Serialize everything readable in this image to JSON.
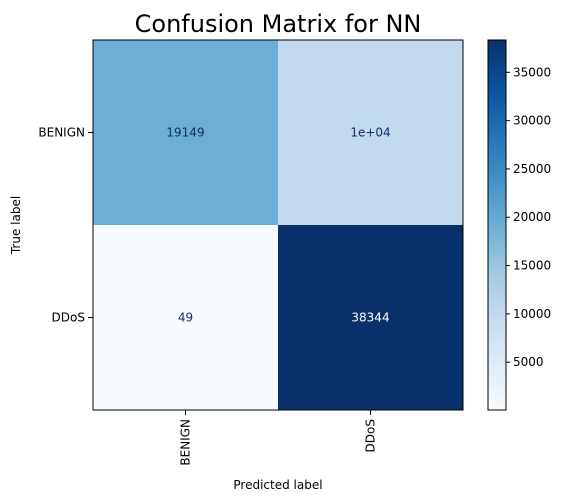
{
  "chart_data": {
    "type": "heatmap",
    "title": "Confusion Matrix for NN",
    "xlabel": "Predicted label",
    "ylabel": "True label",
    "x_categories": [
      "BENIGN",
      "DDoS"
    ],
    "y_categories": [
      "BENIGN",
      "DDoS"
    ],
    "values": [
      [
        19149,
        10000
      ],
      [
        49,
        38344
      ]
    ],
    "cell_labels": [
      [
        "19149",
        "1e+04"
      ],
      [
        "49",
        "38344"
      ]
    ],
    "colormap": "Blues",
    "colorbar": {
      "range": [
        49,
        38344
      ],
      "ticks": [
        5000,
        10000,
        15000,
        20000,
        25000,
        30000,
        35000
      ],
      "tick_labels": [
        "5000",
        "10000",
        "15000",
        "20000",
        "25000",
        "30000",
        "35000"
      ]
    },
    "grid": false
  }
}
